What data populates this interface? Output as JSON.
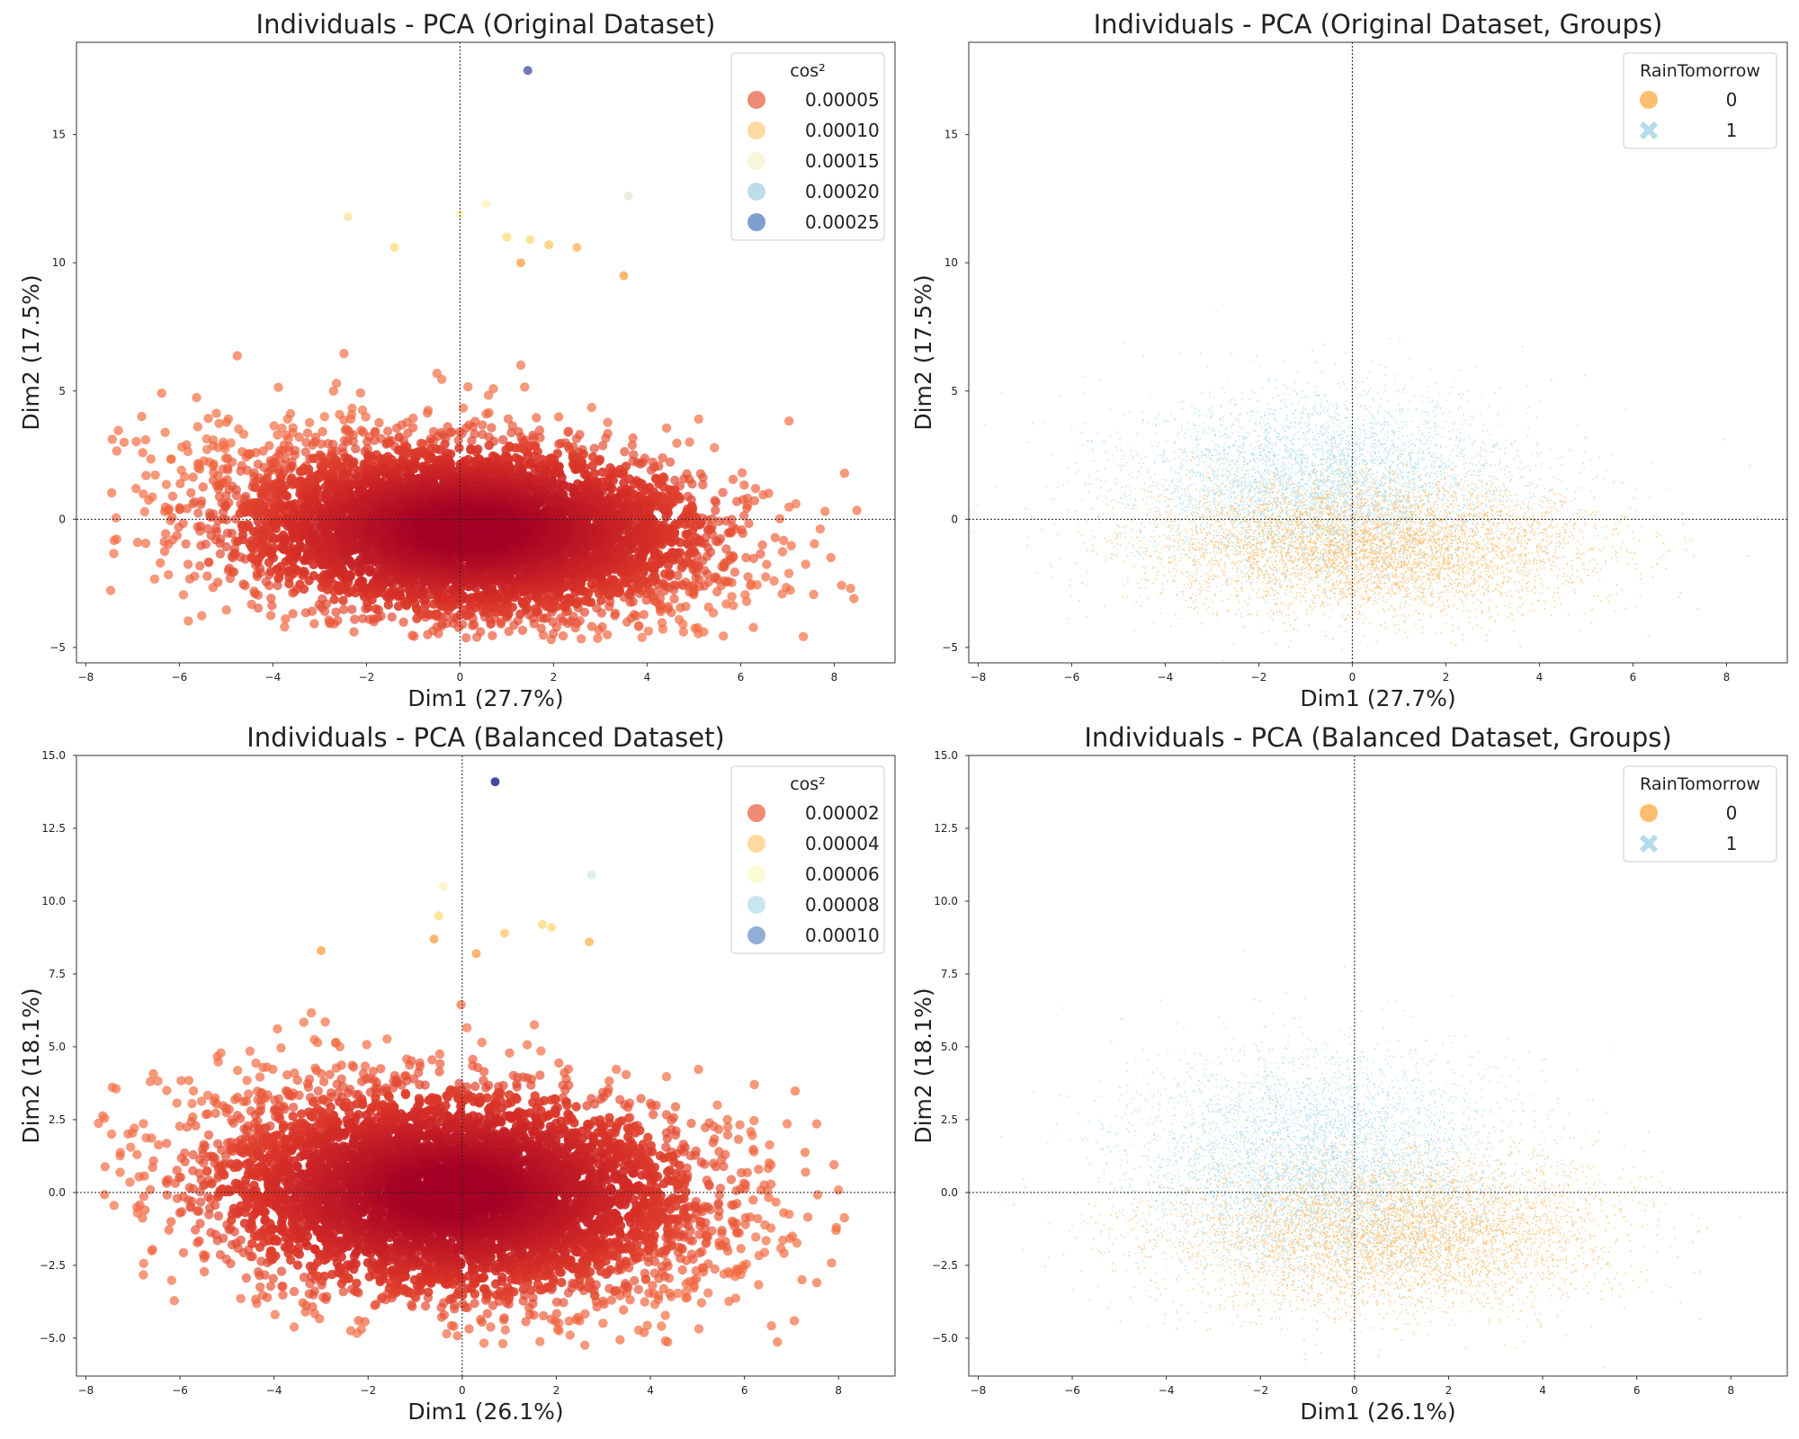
{
  "colors": {
    "red_dark": "#a50026",
    "red": "#d73027",
    "orange_red": "#f46d43",
    "orange": "#fdae61",
    "yellow": "#fee090",
    "cream": "#ffffbf",
    "light_blue": "#abd9e9",
    "blue": "#4575b4",
    "navy": "#313695",
    "group0": "#fdbf6f",
    "group1": "#b3dde9"
  },
  "chart_data": [
    {
      "type": "scatter",
      "title": "Individuals - PCA (Original Dataset)",
      "xlabel": "Dim1 (27.7%)",
      "ylabel": "Dim2 (17.5%)",
      "xlim": [
        -8.2,
        9.3
      ],
      "ylim": [
        -5.6,
        18.6
      ],
      "xticks": [
        -8,
        -6,
        -4,
        -2,
        0,
        2,
        4,
        6,
        8
      ],
      "xtick_labels": [
        "−8",
        "−6",
        "−4",
        "−2",
        "0",
        "2",
        "4",
        "6",
        "8"
      ],
      "yticks": [
        -5,
        0,
        5,
        10,
        15
      ],
      "ytick_labels": [
        "−5",
        "0",
        "5",
        "10",
        "15"
      ],
      "grid": false,
      "reference_lines": {
        "x": 0,
        "y": 0
      },
      "color_by": "cos²",
      "legend": {
        "title": "cos²",
        "position": "top-right",
        "entries": [
          {
            "label": "0.00005",
            "color": "#ef8a74"
          },
          {
            "label": "0.00010",
            "color": "#fed9a0"
          },
          {
            "label": "0.00015",
            "color": "#f7f8db"
          },
          {
            "label": "0.00020",
            "color": "#bcdce9"
          },
          {
            "label": "0.00025",
            "color": "#7f9fcf"
          }
        ]
      },
      "cloud": {
        "cx": 0.2,
        "cy": -0.4,
        "sx": 2.5,
        "sy": 1.7,
        "xmin": -7.5,
        "xmax": 8.6,
        "ymin": -4.7,
        "ymax": 9.3
      },
      "highlight_points": [
        {
          "x": 1.45,
          "y": 17.5,
          "color": "#5e6db0"
        },
        {
          "x": 3.6,
          "y": 12.6,
          "color": "#e4edd8"
        },
        {
          "x": 0.0,
          "y": 11.9,
          "color": "#fff4c2"
        },
        {
          "x": 0.55,
          "y": 12.3,
          "color": "#fff4c2"
        },
        {
          "x": -2.4,
          "y": 11.8,
          "color": "#fee8a8"
        },
        {
          "x": 1.0,
          "y": 11.0,
          "color": "#fee090"
        },
        {
          "x": 1.5,
          "y": 10.9,
          "color": "#fee090"
        },
        {
          "x": 1.9,
          "y": 10.7,
          "color": "#fdd07e"
        },
        {
          "x": 2.5,
          "y": 10.6,
          "color": "#fdc070"
        },
        {
          "x": -1.4,
          "y": 10.6,
          "color": "#fee090"
        },
        {
          "x": 3.5,
          "y": 9.5,
          "color": "#fdae61"
        },
        {
          "x": 1.3,
          "y": 10.0,
          "color": "#fdae61"
        }
      ]
    },
    {
      "type": "scatter",
      "title": "Individuals - PCA (Original Dataset, Groups)",
      "xlabel": "Dim1 (27.7%)",
      "ylabel": "Dim2 (17.5%)",
      "xlim": [
        -8.2,
        9.3
      ],
      "ylim": [
        -5.6,
        18.6
      ],
      "xticks": [
        -8,
        -6,
        -4,
        -2,
        0,
        2,
        4,
        6,
        8
      ],
      "xtick_labels": [
        "−8",
        "−6",
        "−4",
        "−2",
        "0",
        "2",
        "4",
        "6",
        "8"
      ],
      "yticks": [
        -5,
        0,
        5,
        10,
        15
      ],
      "ytick_labels": [
        "−5",
        "0",
        "5",
        "10",
        "15"
      ],
      "grid": false,
      "reference_lines": {
        "x": 0,
        "y": 0
      },
      "color_by": "RainTomorrow",
      "legend": {
        "title": "RainTomorrow",
        "position": "top-right",
        "entries": [
          {
            "label": "0",
            "color": "#fdbf6f",
            "marker": "circle"
          },
          {
            "label": "1",
            "color": "#b3dde9",
            "marker": "x"
          }
        ]
      },
      "series": [
        {
          "name": "1",
          "color": "#b3dde9",
          "cx": -0.6,
          "cy": 1.2,
          "sx": 2.0,
          "sy": 1.8
        },
        {
          "name": "0",
          "color": "#fdbf6f",
          "cx": 0.4,
          "cy": -1.0,
          "sx": 2.4,
          "sy": 1.3
        }
      ],
      "highlight_points": []
    },
    {
      "type": "scatter",
      "title": "Individuals - PCA (Balanced Dataset)",
      "xlabel": "Dim1 (26.1%)",
      "ylabel": "Dim2 (18.1%)",
      "xlim": [
        -8.2,
        9.2
      ],
      "ylim": [
        -6.3,
        15.0
      ],
      "xticks": [
        -8,
        -6,
        -4,
        -2,
        0,
        2,
        4,
        6,
        8
      ],
      "xtick_labels": [
        "−8",
        "−6",
        "−4",
        "−2",
        "0",
        "2",
        "4",
        "6",
        "8"
      ],
      "yticks": [
        -5,
        -2.5,
        0,
        2.5,
        5,
        7.5,
        10,
        12.5,
        15
      ],
      "ytick_labels": [
        "−5.0",
        "−2.5",
        "0.0",
        "2.5",
        "5.0",
        "7.5",
        "10.0",
        "12.5",
        "15.0"
      ],
      "grid": false,
      "reference_lines": {
        "x": 0,
        "y": 0
      },
      "color_by": "cos²",
      "legend": {
        "title": "cos²",
        "position": "top-right",
        "entries": [
          {
            "label": "0.00002",
            "color": "#ef8a74"
          },
          {
            "label": "0.00004",
            "color": "#fed9a0"
          },
          {
            "label": "0.00006",
            "color": "#fbfbd3"
          },
          {
            "label": "0.00008",
            "color": "#c8e6ef"
          },
          {
            "label": "0.00010",
            "color": "#93add6"
          }
        ]
      },
      "cloud": {
        "cx": -0.2,
        "cy": 0.0,
        "sx": 2.5,
        "sy": 1.8,
        "xmin": -7.8,
        "xmax": 8.4,
        "ymin": -5.3,
        "ymax": 8.2
      },
      "highlight_points": [
        {
          "x": 0.7,
          "y": 14.1,
          "color": "#313695"
        },
        {
          "x": 2.75,
          "y": 10.9,
          "color": "#d7ecf0"
        },
        {
          "x": -0.4,
          "y": 10.5,
          "color": "#fff4c2"
        },
        {
          "x": -0.5,
          "y": 9.5,
          "color": "#fee090"
        },
        {
          "x": 1.7,
          "y": 9.2,
          "color": "#fee090"
        },
        {
          "x": 1.9,
          "y": 9.1,
          "color": "#fee090"
        },
        {
          "x": 0.9,
          "y": 8.9,
          "color": "#fdd07e"
        },
        {
          "x": 2.7,
          "y": 8.6,
          "color": "#fdc070"
        },
        {
          "x": -3.0,
          "y": 8.3,
          "color": "#fdae61"
        },
        {
          "x": -0.6,
          "y": 8.7,
          "color": "#fdae61"
        },
        {
          "x": 0.3,
          "y": 8.2,
          "color": "#fdae61"
        }
      ]
    },
    {
      "type": "scatter",
      "title": "Individuals - PCA (Balanced Dataset, Groups)",
      "xlabel": "Dim1 (26.1%)",
      "ylabel": "Dim2 (18.1%)",
      "xlim": [
        -8.2,
        9.2
      ],
      "ylim": [
        -6.3,
        15.0
      ],
      "xticks": [
        -8,
        -6,
        -4,
        -2,
        0,
        2,
        4,
        6,
        8
      ],
      "xtick_labels": [
        "−8",
        "−6",
        "−4",
        "−2",
        "0",
        "2",
        "4",
        "6",
        "8"
      ],
      "yticks": [
        -5,
        -2.5,
        0,
        2.5,
        5,
        7.5,
        10,
        12.5,
        15
      ],
      "ytick_labels": [
        "−5.0",
        "−2.5",
        "0.0",
        "2.5",
        "5.0",
        "7.5",
        "10.0",
        "12.5",
        "15.0"
      ],
      "grid": false,
      "reference_lines": {
        "x": 0,
        "y": 0
      },
      "color_by": "RainTomorrow",
      "legend": {
        "title": "RainTomorrow",
        "position": "top-right",
        "entries": [
          {
            "label": "0",
            "color": "#fdbf6f",
            "marker": "circle"
          },
          {
            "label": "1",
            "color": "#b3dde9",
            "marker": "x"
          }
        ]
      },
      "series": [
        {
          "name": "0",
          "color": "#fdbf6f",
          "cx": 0.8,
          "cy": -1.3,
          "sx": 2.3,
          "sy": 1.3
        },
        {
          "name": "1",
          "color": "#b3dde9",
          "cx": -0.8,
          "cy": 0.9,
          "sx": 2.0,
          "sy": 1.9
        }
      ],
      "highlight_points": []
    }
  ]
}
